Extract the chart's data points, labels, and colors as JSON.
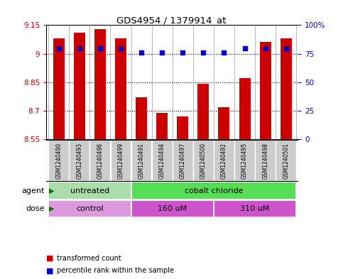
{
  "title": "GDS4954 / 1379914_at",
  "samples": [
    "GSM1240490",
    "GSM1240493",
    "GSM1240496",
    "GSM1240499",
    "GSM1240491",
    "GSM1240494",
    "GSM1240497",
    "GSM1240500",
    "GSM1240492",
    "GSM1240495",
    "GSM1240498",
    "GSM1240501"
  ],
  "transformed_count": [
    9.08,
    9.11,
    9.13,
    9.08,
    8.77,
    8.69,
    8.67,
    8.84,
    8.72,
    8.87,
    9.06,
    9.08
  ],
  "percentile_rank": [
    80,
    80,
    80,
    80,
    76,
    76,
    76,
    76,
    76,
    80,
    80,
    80
  ],
  "ylim": [
    8.55,
    9.15
  ],
  "yticks": [
    8.55,
    8.7,
    8.85,
    9.0,
    9.15
  ],
  "ytick_labels": [
    "8.55",
    "8.7",
    "8.85",
    "9",
    "9.15"
  ],
  "right_yticks": [
    0,
    25,
    50,
    75,
    100
  ],
  "right_ytick_labels": [
    "0",
    "25",
    "50",
    "75",
    "100%"
  ],
  "bar_color": "#cc0000",
  "dot_color": "#0000cc",
  "bar_bottom": 8.55,
  "agent_groups": [
    {
      "label": "untreated",
      "start": 0,
      "end": 4,
      "color": "#aaddaa"
    },
    {
      "label": "cobalt chloride",
      "start": 4,
      "end": 12,
      "color": "#55dd55"
    }
  ],
  "dose_groups": [
    {
      "label": "control",
      "start": 0,
      "end": 4,
      "color": "#dd99dd"
    },
    {
      "label": "160 uM",
      "start": 4,
      "end": 8,
      "color": "#cc55cc"
    },
    {
      "label": "310 uM",
      "start": 8,
      "end": 12,
      "color": "#cc55cc"
    }
  ],
  "bg_color": "#ffffff",
  "axis_label_color_left": "#cc0000",
  "axis_label_color_right": "#0000cc",
  "sample_bg_color": "#cccccc",
  "arrow_color": "#007700",
  "label_text_color": "#000000"
}
